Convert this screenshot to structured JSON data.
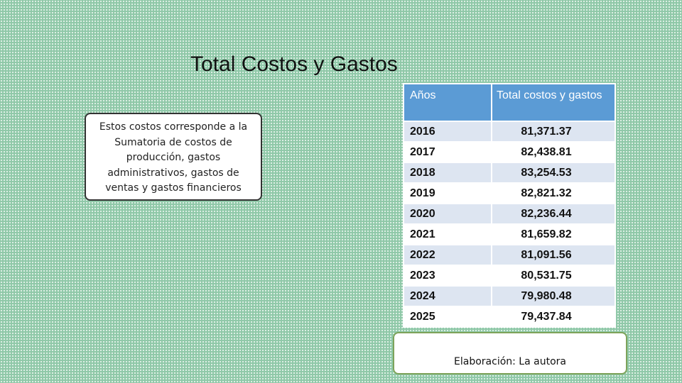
{
  "title": "Total Costos y Gastos",
  "description": "Estos costos corresponde a la Sumatoria de costos de producción, gastos administrativos, gastos de ventas y gastos financieros",
  "table": {
    "headers": [
      "Años",
      "Total costos y gastos"
    ],
    "rows": [
      {
        "year": "2016",
        "value": "81,371.37"
      },
      {
        "year": "2017",
        "value": "82,438.81"
      },
      {
        "year": "2018",
        "value": "83,254.53"
      },
      {
        "year": "2019",
        "value": "82,821.32"
      },
      {
        "year": "2020",
        "value": "82,236.44"
      },
      {
        "year": "2021",
        "value": "81,659.82"
      },
      {
        "year": "2022",
        "value": "81,091.56"
      },
      {
        "year": "2023",
        "value": "80,531.75"
      },
      {
        "year": "2024",
        "value": "79,980.48"
      },
      {
        "year": "2025",
        "value": "79,437.84"
      }
    ]
  },
  "source": "Elaboración: La autora",
  "colors": {
    "background": "#8fc8a8",
    "header": "#5b9bd5",
    "row_shade": "#dde5f1",
    "source_border": "#7ea35a"
  }
}
